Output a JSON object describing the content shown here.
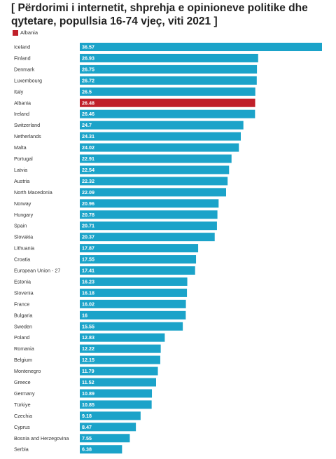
{
  "title": "[ Përdorimi i internetit, shprehja e opinioneve politike dhe qytetare, popullsia 16-74 vjeç, viti 2021 ]",
  "legend": {
    "label": "Albania",
    "color": "#c0202a"
  },
  "colors": {
    "bar": "#1ba3c9",
    "highlight": "#c0202a"
  },
  "chart_data": {
    "type": "bar",
    "orientation": "horizontal",
    "title": "[ Përdorimi i internetit, shprehja e opinioneve politike dhe qytetare, popullsia 16-74 vjeç, viti 2021 ]",
    "highlight": "Albania",
    "xlim": [
      0,
      36.57
    ],
    "categories": [
      "Iceland",
      "Finland",
      "Denmark",
      "Luxembourg",
      "Italy",
      "Albania",
      "Ireland",
      "Switzerland",
      "Netherlands",
      "Malta",
      "Portugal",
      "Latvia",
      "Austria",
      "North Macedonia",
      "Norway",
      "Hungary",
      "Spain",
      "Slovakia",
      "Lithuania",
      "Croatia",
      "European Union - 27",
      "Estonia",
      "Slovenia",
      "France",
      "Bulgaria",
      "Sweden",
      "Poland",
      "Romania",
      "Belgium",
      "Montenegro",
      "Greece",
      "Germany",
      "Türkiye",
      "Czechia",
      "Cyprus",
      "Bosnia and Herzegovina",
      "Serbia"
    ],
    "values": [
      36.57,
      26.93,
      26.75,
      26.72,
      26.5,
      26.48,
      26.46,
      24.7,
      24.31,
      24.02,
      22.91,
      22.54,
      22.32,
      22.09,
      20.96,
      20.78,
      20.71,
      20.37,
      17.87,
      17.55,
      17.41,
      16.23,
      16.18,
      16.02,
      16,
      15.55,
      12.83,
      12.22,
      12.15,
      11.79,
      11.52,
      10.89,
      10.85,
      9.18,
      8.47,
      7.55,
      6.38
    ]
  }
}
